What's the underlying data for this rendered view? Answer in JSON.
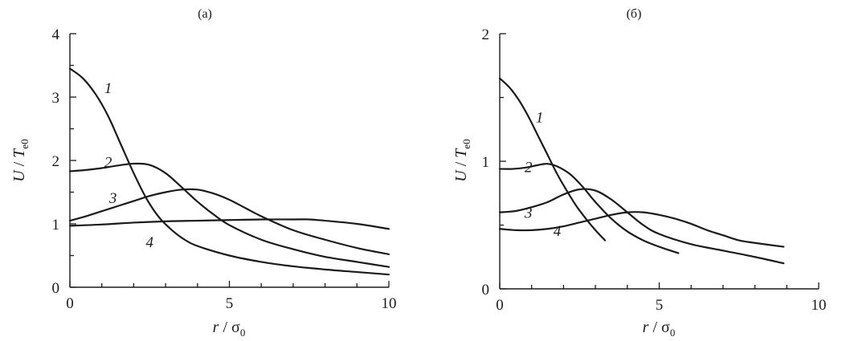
{
  "chart_data": [
    {
      "type": "line",
      "title": "(a)",
      "xlabel": {
        "var": "r",
        "slash": " / ",
        "sym": "σ",
        "sub": "0"
      },
      "ylabel": {
        "var": "U",
        "slash": " / ",
        "sym": "T",
        "sub": "e0"
      },
      "xlim": [
        0,
        10
      ],
      "ylim": [
        0,
        4
      ],
      "xticks": [
        0,
        5,
        10
      ],
      "yticks": [
        0,
        1,
        2,
        3,
        4
      ],
      "grid": false,
      "series": [
        {
          "name": "1",
          "label_at": [
            1.2,
            3.15
          ],
          "points": [
            [
              0,
              3.45
            ],
            [
              0.4,
              3.3
            ],
            [
              0.8,
              3.05
            ],
            [
              1.2,
              2.7
            ],
            [
              1.6,
              2.25
            ],
            [
              2.0,
              1.8
            ],
            [
              2.4,
              1.4
            ],
            [
              2.8,
              1.1
            ],
            [
              3.2,
              0.9
            ],
            [
              3.6,
              0.75
            ],
            [
              4.0,
              0.65
            ],
            [
              5.0,
              0.5
            ],
            [
              6.0,
              0.4
            ],
            [
              7.0,
              0.33
            ],
            [
              8.0,
              0.28
            ],
            [
              9.0,
              0.24
            ],
            [
              10,
              0.2
            ]
          ]
        },
        {
          "name": "2",
          "label_at": [
            1.2,
            1.98
          ],
          "points": [
            [
              0,
              1.83
            ],
            [
              0.5,
              1.85
            ],
            [
              1.0,
              1.88
            ],
            [
              1.5,
              1.92
            ],
            [
              2.0,
              1.95
            ],
            [
              2.5,
              1.93
            ],
            [
              3.0,
              1.8
            ],
            [
              3.5,
              1.58
            ],
            [
              4.0,
              1.35
            ],
            [
              4.5,
              1.15
            ],
            [
              5.0,
              0.98
            ],
            [
              6.0,
              0.75
            ],
            [
              7.0,
              0.6
            ],
            [
              8.0,
              0.48
            ],
            [
              9.0,
              0.4
            ],
            [
              10,
              0.32
            ]
          ]
        },
        {
          "name": "3",
          "label_at": [
            1.35,
            1.42
          ],
          "points": [
            [
              0,
              1.05
            ],
            [
              0.5,
              1.12
            ],
            [
              1.0,
              1.2
            ],
            [
              1.5,
              1.28
            ],
            [
              2.0,
              1.36
            ],
            [
              2.5,
              1.44
            ],
            [
              3.0,
              1.5
            ],
            [
              3.5,
              1.54
            ],
            [
              4.0,
              1.54
            ],
            [
              4.5,
              1.48
            ],
            [
              5.0,
              1.38
            ],
            [
              5.5,
              1.25
            ],
            [
              6.0,
              1.12
            ],
            [
              7.0,
              0.9
            ],
            [
              8.0,
              0.75
            ],
            [
              9.0,
              0.62
            ],
            [
              10,
              0.52
            ]
          ]
        },
        {
          "name": "4",
          "label_at": [
            2.5,
            0.72
          ],
          "points": [
            [
              0,
              0.97
            ],
            [
              1,
              0.99
            ],
            [
              2,
              1.02
            ],
            [
              3,
              1.04
            ],
            [
              4,
              1.05
            ],
            [
              5,
              1.06
            ],
            [
              6,
              1.07
            ],
            [
              7,
              1.07
            ],
            [
              7.5,
              1.07
            ],
            [
              8,
              1.05
            ],
            [
              9,
              1.0
            ],
            [
              10,
              0.92
            ]
          ]
        }
      ]
    },
    {
      "type": "line",
      "title": "(б)",
      "xlabel": {
        "var": "r",
        "slash": " / ",
        "sym": "σ",
        "sub": "0"
      },
      "ylabel": {
        "var": "U",
        "slash": " / ",
        "sym": "T",
        "sub": "e0"
      },
      "xlim": [
        0,
        10
      ],
      "ylim": [
        0,
        2
      ],
      "xticks": [
        0,
        5,
        10
      ],
      "yticks": [
        0,
        1,
        2
      ],
      "grid": false,
      "series": [
        {
          "name": "1",
          "label_at": [
            1.25,
            1.35
          ],
          "points": [
            [
              0,
              1.65
            ],
            [
              0.3,
              1.58
            ],
            [
              0.6,
              1.48
            ],
            [
              0.9,
              1.35
            ],
            [
              1.2,
              1.2
            ],
            [
              1.5,
              1.05
            ],
            [
              1.8,
              0.9
            ],
            [
              2.1,
              0.77
            ],
            [
              2.4,
              0.65
            ],
            [
              2.7,
              0.55
            ],
            [
              3.0,
              0.46
            ],
            [
              3.3,
              0.38
            ]
          ]
        },
        {
          "name": "2",
          "label_at": [
            0.9,
            0.96
          ],
          "points": [
            [
              0,
              0.94
            ],
            [
              0.4,
              0.94
            ],
            [
              0.8,
              0.95
            ],
            [
              1.2,
              0.97
            ],
            [
              1.5,
              0.98
            ],
            [
              1.8,
              0.96
            ],
            [
              2.2,
              0.9
            ],
            [
              2.6,
              0.8
            ],
            [
              3.0,
              0.68
            ],
            [
              3.5,
              0.55
            ],
            [
              4.0,
              0.45
            ],
            [
              4.5,
              0.38
            ],
            [
              5.0,
              0.33
            ],
            [
              5.6,
              0.28
            ]
          ]
        },
        {
          "name": "3",
          "label_at": [
            0.9,
            0.6
          ],
          "points": [
            [
              0,
              0.6
            ],
            [
              0.5,
              0.61
            ],
            [
              1.0,
              0.64
            ],
            [
              1.5,
              0.68
            ],
            [
              2.0,
              0.74
            ],
            [
              2.5,
              0.78
            ],
            [
              3.0,
              0.77
            ],
            [
              3.5,
              0.7
            ],
            [
              4.0,
              0.6
            ],
            [
              4.5,
              0.5
            ],
            [
              5.0,
              0.43
            ],
            [
              6.0,
              0.35
            ],
            [
              7.0,
              0.3
            ],
            [
              8.0,
              0.25
            ],
            [
              8.9,
              0.2
            ]
          ]
        },
        {
          "name": "4",
          "label_at": [
            1.8,
            0.46
          ],
          "points": [
            [
              0,
              0.47
            ],
            [
              0.5,
              0.46
            ],
            [
              1.0,
              0.46
            ],
            [
              1.5,
              0.47
            ],
            [
              2.0,
              0.49
            ],
            [
              2.5,
              0.52
            ],
            [
              3.0,
              0.55
            ],
            [
              3.5,
              0.58
            ],
            [
              4.0,
              0.6
            ],
            [
              4.5,
              0.6
            ],
            [
              5.0,
              0.58
            ],
            [
              5.5,
              0.55
            ],
            [
              6.0,
              0.51
            ],
            [
              6.5,
              0.46
            ],
            [
              7.0,
              0.42
            ],
            [
              7.5,
              0.38
            ],
            [
              8.0,
              0.36
            ],
            [
              8.9,
              0.33
            ]
          ]
        }
      ]
    }
  ]
}
